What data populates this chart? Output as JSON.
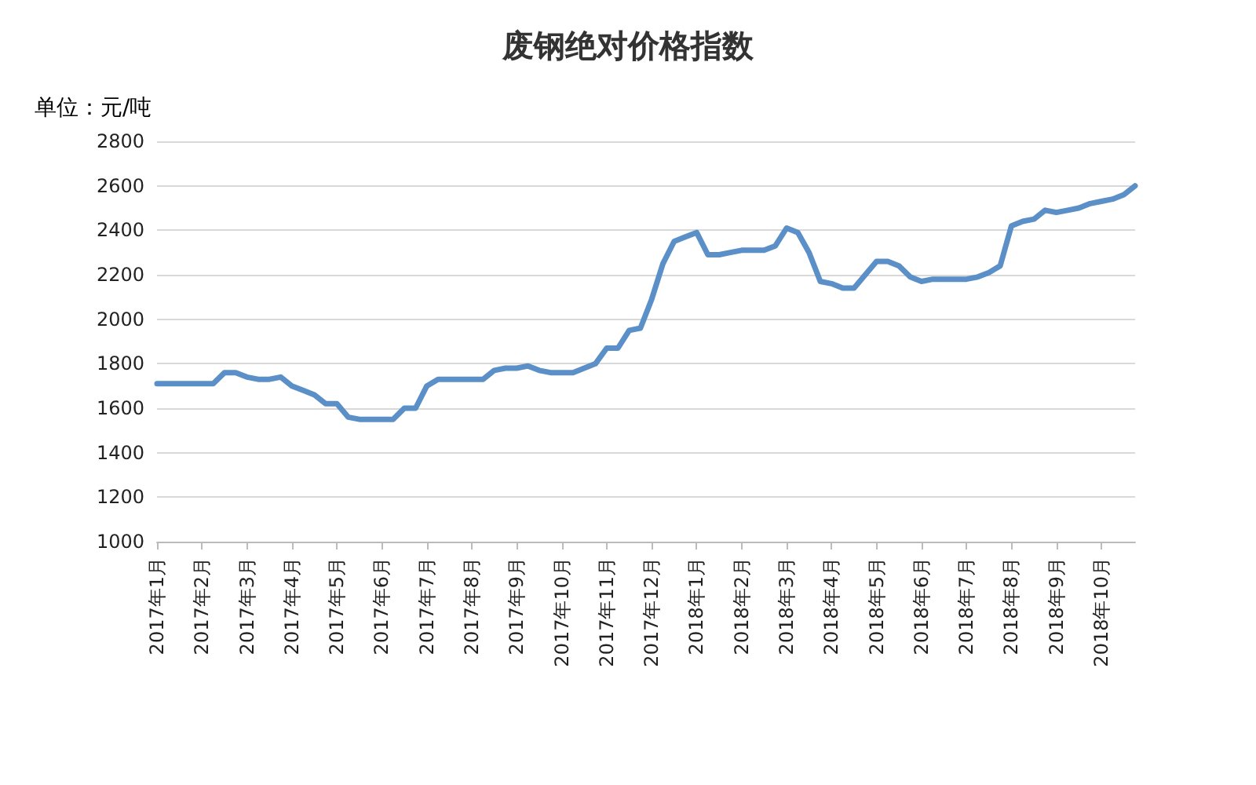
{
  "chart_data": {
    "type": "line",
    "title": "废钢绝对价格指数",
    "ylabel": "单位：元/吨",
    "categories": [
      "2017年1月",
      null,
      null,
      null,
      "2017年2月",
      null,
      null,
      null,
      "2017年3月",
      null,
      null,
      null,
      "2017年4月",
      null,
      null,
      null,
      "2017年5月",
      null,
      null,
      null,
      "2017年6月",
      null,
      null,
      null,
      "2017年7月",
      null,
      null,
      null,
      "2017年8月",
      null,
      null,
      null,
      "2017年9月",
      null,
      null,
      null,
      "2017年10月",
      null,
      null,
      null,
      "2017年11月",
      null,
      null,
      null,
      "2017年12月",
      null,
      null,
      null,
      "2018年1月",
      null,
      null,
      null,
      "2018年2月",
      null,
      null,
      null,
      "2018年3月",
      null,
      null,
      null,
      "2018年4月",
      null,
      null,
      null,
      "2018年5月",
      null,
      null,
      null,
      "2018年6月",
      null,
      null,
      null,
      "2018年7月",
      null,
      null,
      null,
      "2018年8月",
      null,
      null,
      null,
      "2018年9月",
      null,
      null,
      null,
      "2018年10月",
      null,
      null,
      null
    ],
    "series": [
      {
        "color": "#5b8fc7",
        "values": [
          1710,
          1710,
          1710,
          1710,
          1710,
          1710,
          1760,
          1760,
          1740,
          1730,
          1730,
          1740,
          1700,
          1680,
          1660,
          1620,
          1620,
          1560,
          1550,
          1550,
          1550,
          1550,
          1600,
          1600,
          1700,
          1730,
          1730,
          1730,
          1730,
          1730,
          1770,
          1780,
          1780,
          1790,
          1770,
          1760,
          1760,
          1760,
          1780,
          1800,
          1870,
          1870,
          1950,
          1960,
          2090,
          2250,
          2350,
          2370,
          2390,
          2290,
          2290,
          2300,
          2310,
          2310,
          2310,
          2330,
          2410,
          2390,
          2300,
          2170,
          2160,
          2140,
          2140,
          2200,
          2260,
          2260,
          2240,
          2190,
          2170,
          2180,
          2180,
          2180,
          2180,
          2190,
          2210,
          2240,
          2420,
          2440,
          2450,
          2490,
          2480,
          2490,
          2500,
          2520,
          2530,
          2540,
          2560,
          2600
        ]
      }
    ],
    "ylim": [
      1000,
      2800
    ],
    "yticks": [
      1000,
      1200,
      1400,
      1600,
      1800,
      2000,
      2200,
      2400,
      2600,
      2800
    ],
    "grid": "y",
    "marker": "none",
    "line_style": "solid"
  }
}
